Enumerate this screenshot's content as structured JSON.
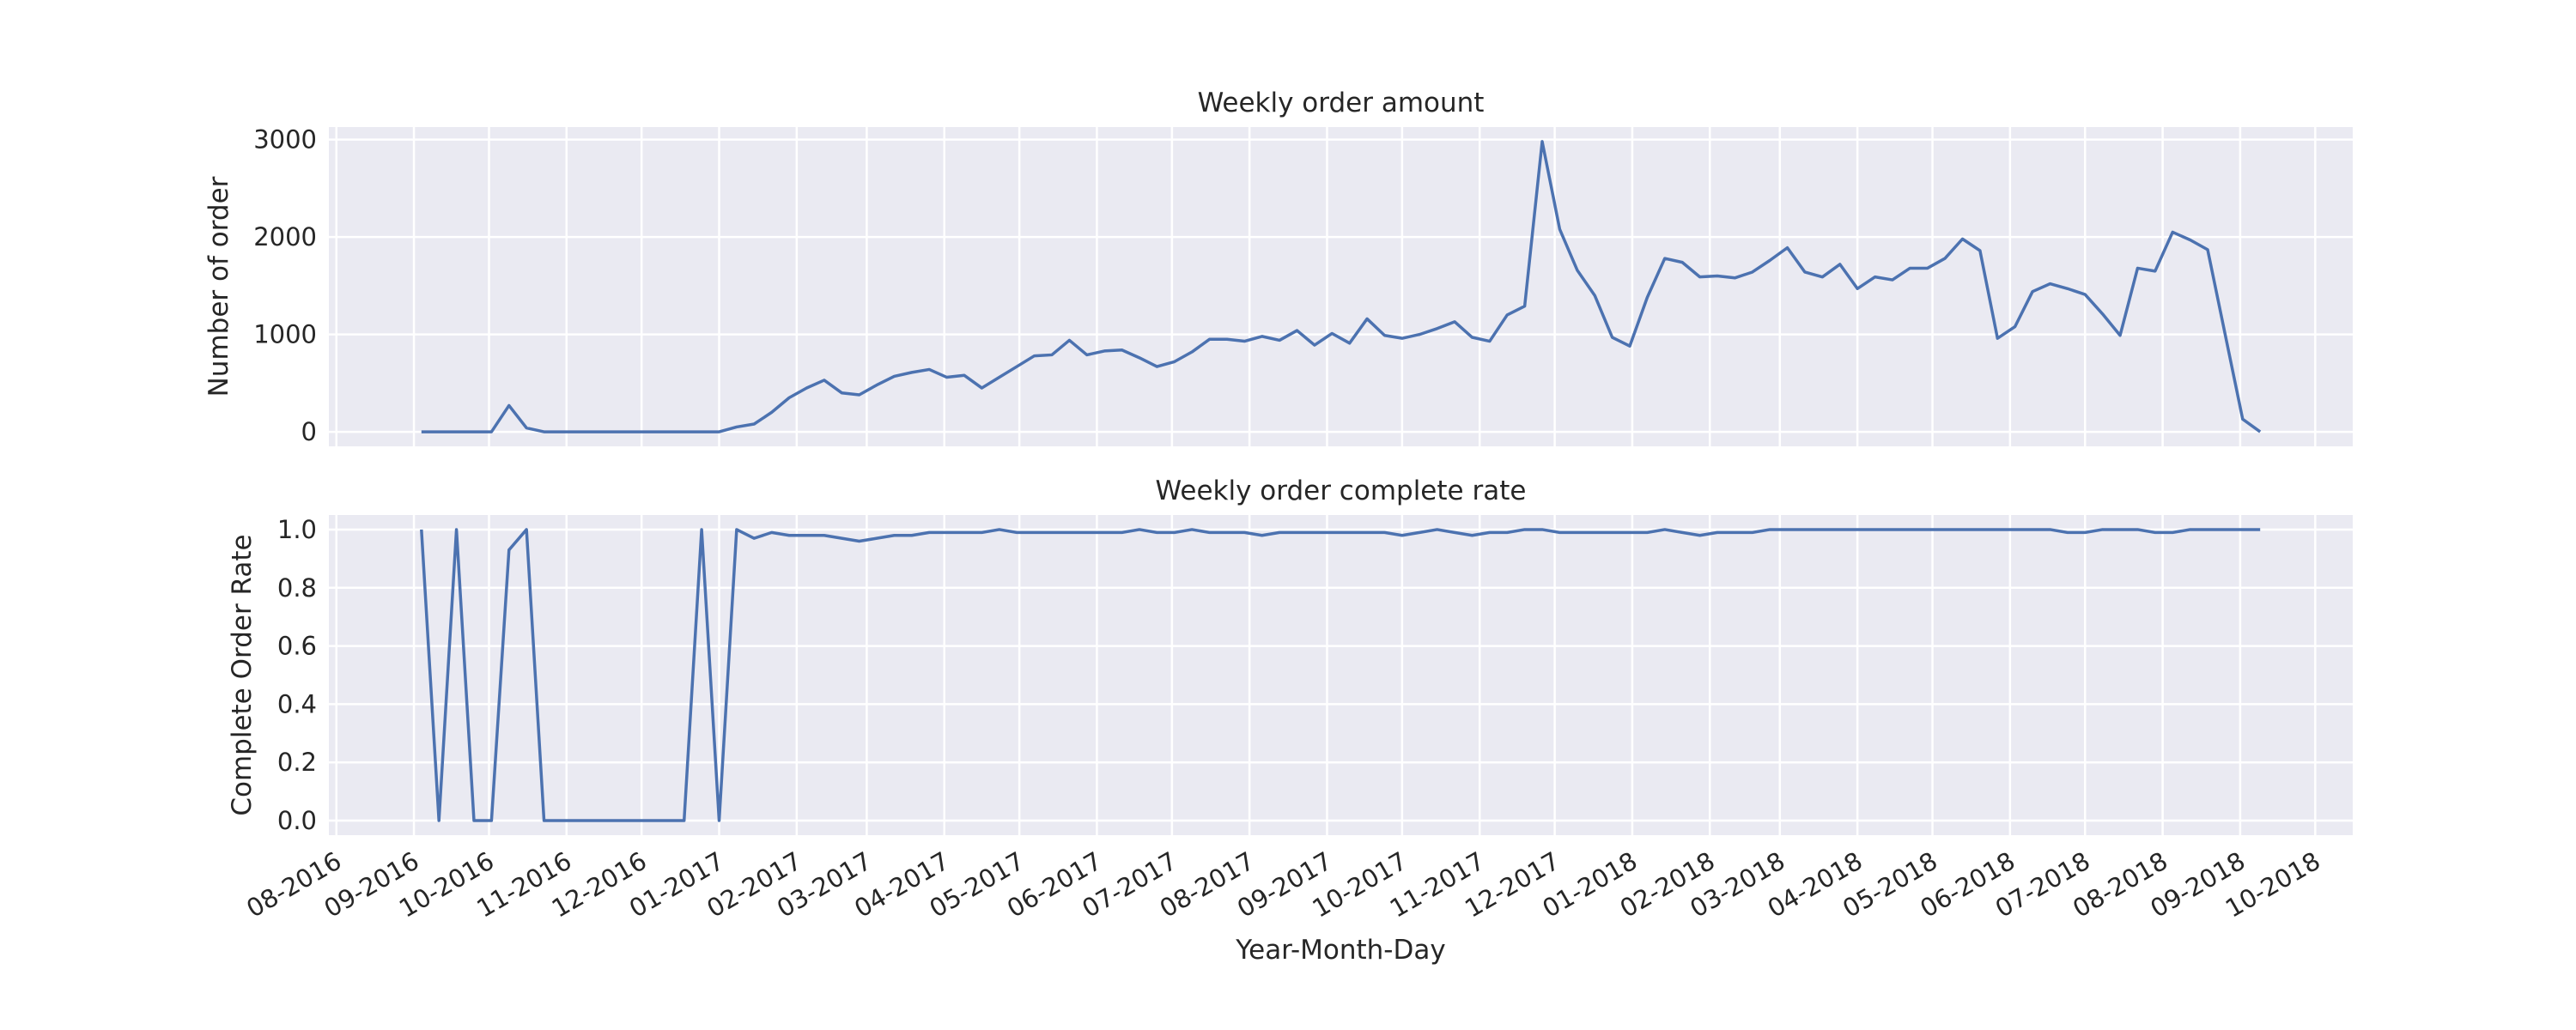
{
  "chart_data": {
    "type": "line",
    "xlabel": "Year-Month-Day",
    "x": [
      "2016-09-04",
      "2016-09-11",
      "2016-09-18",
      "2016-09-25",
      "2016-10-02",
      "2016-10-09",
      "2016-10-16",
      "2016-10-23",
      "2016-10-30",
      "2016-11-06",
      "2016-11-13",
      "2016-11-20",
      "2016-11-27",
      "2016-12-04",
      "2016-12-11",
      "2016-12-18",
      "2016-12-25",
      "2017-01-01",
      "2017-01-08",
      "2017-01-15",
      "2017-01-22",
      "2017-01-29",
      "2017-02-05",
      "2017-02-12",
      "2017-02-19",
      "2017-02-26",
      "2017-03-05",
      "2017-03-12",
      "2017-03-19",
      "2017-03-26",
      "2017-04-02",
      "2017-04-09",
      "2017-04-16",
      "2017-04-23",
      "2017-04-30",
      "2017-05-07",
      "2017-05-14",
      "2017-05-21",
      "2017-05-28",
      "2017-06-04",
      "2017-06-11",
      "2017-06-18",
      "2017-06-25",
      "2017-07-02",
      "2017-07-09",
      "2017-07-16",
      "2017-07-23",
      "2017-07-30",
      "2017-08-06",
      "2017-08-13",
      "2017-08-20",
      "2017-08-27",
      "2017-09-03",
      "2017-09-10",
      "2017-09-17",
      "2017-09-24",
      "2017-10-01",
      "2017-10-08",
      "2017-10-15",
      "2017-10-22",
      "2017-10-29",
      "2017-11-05",
      "2017-11-12",
      "2017-11-19",
      "2017-11-26",
      "2017-12-03",
      "2017-12-10",
      "2017-12-17",
      "2017-12-24",
      "2017-12-31",
      "2018-01-07",
      "2018-01-14",
      "2018-01-21",
      "2018-01-28",
      "2018-02-04",
      "2018-02-11",
      "2018-02-18",
      "2018-02-25",
      "2018-03-04",
      "2018-03-11",
      "2018-03-18",
      "2018-03-25",
      "2018-04-01",
      "2018-04-08",
      "2018-04-15",
      "2018-04-22",
      "2018-04-29",
      "2018-05-06",
      "2018-05-13",
      "2018-05-20",
      "2018-05-27",
      "2018-06-03",
      "2018-06-10",
      "2018-06-17",
      "2018-06-24",
      "2018-07-01",
      "2018-07-08",
      "2018-07-15",
      "2018-07-22",
      "2018-07-29",
      "2018-08-05",
      "2018-08-12",
      "2018-08-19",
      "2018-08-26",
      "2018-09-02",
      "2018-09-09"
    ],
    "xlim": [
      "2016-07-29",
      "2018-10-16"
    ],
    "xticks": [
      {
        "value": "2016-08-01",
        "label": "08-2016"
      },
      {
        "value": "2016-09-01",
        "label": "09-2016"
      },
      {
        "value": "2016-10-01",
        "label": "10-2016"
      },
      {
        "value": "2016-11-01",
        "label": "11-2016"
      },
      {
        "value": "2016-12-01",
        "label": "12-2016"
      },
      {
        "value": "2017-01-01",
        "label": "01-2017"
      },
      {
        "value": "2017-02-01",
        "label": "02-2017"
      },
      {
        "value": "2017-03-01",
        "label": "03-2017"
      },
      {
        "value": "2017-04-01",
        "label": "04-2017"
      },
      {
        "value": "2017-05-01",
        "label": "05-2017"
      },
      {
        "value": "2017-06-01",
        "label": "06-2017"
      },
      {
        "value": "2017-07-01",
        "label": "07-2017"
      },
      {
        "value": "2017-08-01",
        "label": "08-2017"
      },
      {
        "value": "2017-09-01",
        "label": "09-2017"
      },
      {
        "value": "2017-10-01",
        "label": "10-2017"
      },
      {
        "value": "2017-11-01",
        "label": "11-2017"
      },
      {
        "value": "2017-12-01",
        "label": "12-2017"
      },
      {
        "value": "2018-01-01",
        "label": "01-2018"
      },
      {
        "value": "2018-02-01",
        "label": "02-2018"
      },
      {
        "value": "2018-03-01",
        "label": "03-2018"
      },
      {
        "value": "2018-04-01",
        "label": "04-2018"
      },
      {
        "value": "2018-05-01",
        "label": "05-2018"
      },
      {
        "value": "2018-06-01",
        "label": "06-2018"
      },
      {
        "value": "2018-07-01",
        "label": "07-2018"
      },
      {
        "value": "2018-08-01",
        "label": "08-2018"
      },
      {
        "value": "2018-09-01",
        "label": "09-2018"
      },
      {
        "value": "2018-10-01",
        "label": "10-2018"
      }
    ],
    "grid": true,
    "panels": [
      {
        "title": "Weekly order amount",
        "ylabel": "Number of order",
        "ylim": [
          -149,
          3129
        ],
        "yticks": [
          0,
          1000,
          2000,
          3000
        ],
        "series": [
          {
            "color": "#4c72b0",
            "values": [
              0,
              0,
              0,
              0,
              0,
              270,
              40,
              0,
              0,
              0,
              0,
              0,
              0,
              0,
              0,
              0,
              0,
              0,
              50,
              80,
              200,
              350,
              450,
              530,
              400,
              380,
              480,
              570,
              610,
              640,
              560,
              580,
              450,
              560,
              670,
              780,
              790,
              940,
              790,
              830,
              840,
              760,
              670,
              720,
              820,
              950,
              950,
              930,
              980,
              940,
              1040,
              890,
              1010,
              910,
              1160,
              990,
              960,
              1000,
              1060,
              1130,
              970,
              930,
              1200,
              1290,
              2980,
              2080,
              1660,
              1400,
              970,
              880,
              1380,
              1780,
              1740,
              1590,
              1600,
              1580,
              1640,
              1760,
              1890,
              1640,
              1590,
              1720,
              1470,
              1590,
              1560,
              1680,
              1680,
              1780,
              1980,
              1860,
              960,
              1080,
              1440,
              1520,
              1470,
              1410,
              1210,
              990,
              1680,
              1650,
              2050,
              1970,
              1870,
              1000,
              130,
              0
            ]
          }
        ]
      },
      {
        "title": "Weekly order complete rate",
        "ylabel": "Complete Order Rate",
        "ylim": [
          -0.05,
          1.05
        ],
        "yticks": [
          {
            "value": 0,
            "label": "0.0"
          },
          0.2,
          0.4,
          0.6,
          0.8,
          {
            "value": 1,
            "label": "1.0"
          }
        ],
        "series": [
          {
            "color": "#4c72b0",
            "values": [
              1,
              0,
              1,
              0,
              0,
              0.93,
              1,
              0,
              0,
              0,
              0,
              0,
              0,
              0,
              0,
              0,
              1,
              0,
              1,
              0.97,
              0.99,
              0.98,
              0.98,
              0.98,
              0.97,
              0.96,
              0.97,
              0.98,
              0.98,
              0.99,
              0.99,
              0.99,
              0.99,
              1,
              0.99,
              0.99,
              0.99,
              0.99,
              0.99,
              0.99,
              0.99,
              1,
              0.99,
              0.99,
              1,
              0.99,
              0.99,
              0.99,
              0.98,
              0.99,
              0.99,
              0.99,
              0.99,
              0.99,
              0.99,
              0.99,
              0.98,
              0.99,
              1,
              0.99,
              0.98,
              0.99,
              0.99,
              1,
              1,
              0.99,
              0.99,
              0.99,
              0.99,
              0.99,
              0.99,
              1,
              0.99,
              0.98,
              0.99,
              0.99,
              0.99,
              1,
              1,
              1,
              1,
              1,
              1,
              1,
              1,
              1,
              1,
              1,
              1,
              1,
              1,
              1,
              1,
              1,
              0.99,
              0.99,
              1,
              1,
              1,
              0.99,
              0.99,
              1,
              1,
              1,
              1,
              1
            ]
          }
        ]
      }
    ]
  }
}
